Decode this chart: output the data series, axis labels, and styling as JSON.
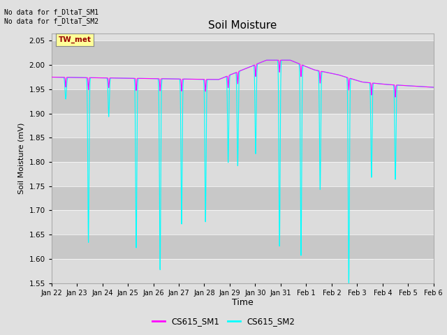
{
  "title": "Soil Moisture",
  "ylabel": "Soil Moisture (mV)",
  "xlabel": "Time",
  "ylim": [
    1.55,
    2.065
  ],
  "yticks": [
    1.55,
    1.6,
    1.65,
    1.7,
    1.75,
    1.8,
    1.85,
    1.9,
    1.95,
    2.0,
    2.05
  ],
  "xtick_labels": [
    "Jan 22",
    "Jan 23",
    "Jan 24",
    "Jan 25",
    "Jan 26",
    "Jan 27",
    "Jan 28",
    "Jan 29",
    "Jan 30",
    "Jan 31",
    "Feb 1",
    "Feb 2",
    "Feb 3",
    "Feb 4",
    "Feb 5",
    "Feb 6"
  ],
  "no_data_text1": "No data for f_DltaT_SM1",
  "no_data_text2": "No data for f_DltaT_SM2",
  "tw_met_label": "TW_met",
  "legend_sm1": "CS615_SM1",
  "legend_sm2": "CS615_SM2",
  "color_sm1": "#FF00FF",
  "color_sm2": "#00FFFF",
  "bg_color": "#E0E0E0",
  "plot_bg_color": "#E0E0E0",
  "tw_met_bg": "#FFFF99",
  "tw_met_fg": "#990000",
  "band_colors": [
    "#DCDCDC",
    "#C8C8C8"
  ]
}
